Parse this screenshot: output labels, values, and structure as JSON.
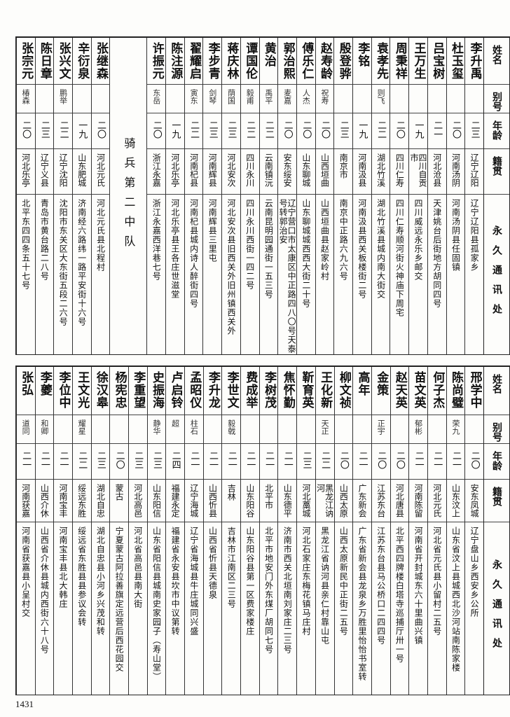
{
  "headers": {
    "name": "姓名",
    "alias": "别号",
    "age": "年龄",
    "origin": "籍贯",
    "address": "永久通讯处"
  },
  "top": {
    "rows": [
      {
        "name": "李升禹",
        "alias": "",
        "age": "二三",
        "origin": "辽宁辽阳",
        "address": "辽宁辽阳县孤家乡"
      },
      {
        "name": "杜玉玺",
        "alias": "",
        "age": "二〇",
        "origin": "河南汤阴",
        "address": "河南汤阴县任固镇"
      },
      {
        "name": "吕宝树",
        "alias": "",
        "age": "二一",
        "origin": "河北沧县",
        "address": "天津姚台后街地方胡同四号"
      },
      {
        "name": "王万生",
        "alias": "",
        "age": "一九",
        "origin": "四川自贡市",
        "address": "四川威远永乐乡邮交"
      },
      {
        "name": "周秉祥",
        "alias": "",
        "age": "二〇",
        "origin": "四川仁寿",
        "address": "四川仁寿顺河街火神庙下周宅"
      },
      {
        "name": "袁孝先",
        "alias": "则飞",
        "age": "二二",
        "origin": "湖北竹溪",
        "address": "湖北竹溪县城内南大街交"
      },
      {
        "name": "李铭",
        "alias": "",
        "age": "一九",
        "origin": "河南汲县",
        "address": "河南汲县西关板楼街二号"
      },
      {
        "name": "殷登骅",
        "alias": "",
        "age": "二三",
        "origin": "南京市",
        "address": "南京中正路六九六号"
      },
      {
        "name": "赵寿龄",
        "alias": "祝寿",
        "age": "二〇",
        "origin": "山西垣曲",
        "address": "山西垣曲县赵家岭村"
      },
      {
        "name": "傅乐仁",
        "alias": "人杰",
        "age": "二〇",
        "origin": "山东聊城",
        "address": "山东聊城城西西大街二十号"
      },
      {
        "name": "郭治熙",
        "alias": "麦嘉",
        "age": "二〇",
        "origin": "安东绥安",
        "address": "辽宁营口市太康区中正路四八〇号天泰号转郭治安"
      },
      {
        "name": "黄治",
        "alias": "禹平",
        "age": "二二",
        "origin": "云南镇沅",
        "address": "云南昆明园通街一五三号"
      },
      {
        "name": "谭国伦",
        "alias": "毅甫",
        "age": "二二",
        "origin": "四川永川",
        "address": "四川永川西街一四二号"
      },
      {
        "name": "蒋庆林",
        "alias": "荫国",
        "age": "二三",
        "origin": "河北安次",
        "address": "河北安次县旧西关外旧州镇西关外"
      },
      {
        "name": "李步青",
        "alias": "剑琴",
        "age": "二三",
        "origin": "河南辉县",
        "address": "河南辉县三里屯"
      },
      {
        "name": "翟耀启",
        "alias": "寅东",
        "age": "二二",
        "origin": "河南杞县",
        "address": "河南杞县城内诗人醉街四号"
      },
      {
        "name": "陈注源",
        "alias": "",
        "age": "一九",
        "origin": "河北乐亭",
        "address": "河北乐亭县王各庄世滋堂"
      },
      {
        "name": "许振元",
        "alias": "东岳",
        "age": "二〇",
        "origin": "浙江永嘉",
        "address": "浙江永嘉西洋巷七号"
      }
    ],
    "squad": "骑兵第二中队",
    "rows2": [
      {
        "name": "张继森",
        "alias": "",
        "age": "二〇",
        "origin": "河北元氏",
        "address": "河北元氏县北程村"
      },
      {
        "name": "辛衍泉",
        "alias": "",
        "age": "一九",
        "origin": "山东肥城",
        "address": "济南经六路纬一路平安街十六号"
      },
      {
        "name": "张兴文",
        "alias": "鹏举",
        "age": "二二",
        "origin": "辽宁沈阳",
        "address": "沈阳市东关区大东街五段二六号"
      },
      {
        "name": "陈日章",
        "alias": "",
        "age": "二三",
        "origin": "辽宁义县",
        "address": "青岛市黄台路二八号"
      },
      {
        "name": "张宗元",
        "alias": "椿森",
        "age": "二〇",
        "origin": "河北乐亭",
        "address": "北平东四四条五十七号"
      }
    ]
  },
  "bottom": {
    "rows": [
      {
        "name": "邢学中",
        "alias": "",
        "age": "二〇",
        "origin": "安东凤城",
        "address": "辽宁盘山乡西安乡公所"
      },
      {
        "name": "陈尚璧",
        "alias": "荣九",
        "age": "二一",
        "origin": "山东汶上",
        "address": "山东省汶上县城西北沙河站南陈家楼"
      },
      {
        "name": "何子杰",
        "alias": "",
        "age": "二一",
        "origin": "河北元氏",
        "address": "河北省元氏县小留村二五号"
      },
      {
        "name": "苗文英",
        "alias": "郁彬",
        "age": "二一",
        "origin": "河南陈留",
        "address": "河南省开封城东六十里曲兴镇"
      },
      {
        "name": "赵天英",
        "alias": "",
        "age": "二〇",
        "origin": "河北唐县",
        "address": "北平西四牌楼白塔寺巡捕厅卅一号"
      },
      {
        "name": "金策",
        "alias": "正宇",
        "age": "二〇",
        "origin": "江苏东台",
        "address": "江苏东台县马公桥口二四四号"
      },
      {
        "name": "高年",
        "alias": "",
        "age": "二一",
        "origin": "广东新会",
        "address": "广东省新会县龙泉乡万胜里怡怡书室转"
      },
      {
        "name": "柳文祯",
        "alias": "",
        "age": "二〇",
        "origin": "山西太原",
        "address": "山西太原新民中正街二五号"
      },
      {
        "name": "王化新",
        "alias": "天正",
        "age": "二二",
        "origin": "黑龙江讷河",
        "address": "黑龙江省讷河县亲仁村靠山屯"
      },
      {
        "name": "靳育英",
        "alias": "",
        "age": "二三",
        "origin": "河北藁城",
        "address": "河北石家庄东梅花镇马庄村"
      },
      {
        "name": "焦怀勤",
        "alias": "",
        "age": "二一",
        "origin": "山东德平",
        "address": "济南市西关北垣南刘家庄二三号"
      },
      {
        "name": "李树茂",
        "alias": "",
        "age": "二一",
        "origin": "北平市",
        "address": "北平市地安门外东煤厂胡同七号"
      },
      {
        "name": "费成举",
        "alias": "",
        "age": "二一",
        "origin": "山东阳谷",
        "address": "山东阳谷县第一区费家楼庄"
      },
      {
        "name": "李世文",
        "alias": "毅戟",
        "age": "二一",
        "origin": "吉林",
        "address": "吉林市江南区二三号"
      },
      {
        "name": "李升龙",
        "alias": "",
        "age": "二一",
        "origin": "山西忻县",
        "address": "山西省忻县天德泉"
      },
      {
        "name": "孟昭仪",
        "alias": "柱石",
        "age": "二一",
        "origin": "辽宁海城",
        "address": "辽宁省海城县牛庄城同兴盛"
      },
      {
        "name": "卢启铃",
        "alias": "超",
        "age": "二四",
        "origin": "福建永定",
        "address": "福建省永安县坎市中议第转"
      },
      {
        "name": "史振海",
        "alias": "静华",
        "age": "二三",
        "origin": "山东阳信",
        "address": "山东省阳信县城南史家园子（寿山堂）"
      },
      {
        "name": "李重望",
        "alias": "",
        "age": "二三",
        "origin": "河北高邑",
        "address": "河北省高邑县南大街"
      },
      {
        "name": "杨宪忠",
        "alias": "",
        "age": "二〇",
        "origin": "蒙古",
        "address": "宁夏蒙古阿拉善旗定远营后西花园交"
      },
      {
        "name": "徐汉皋",
        "alias": "",
        "age": "二三",
        "origin": "湖北自忠",
        "address": "湖北自忠县小河乡兴茂和转"
      },
      {
        "name": "王文光",
        "alias": "耀星",
        "age": "二二",
        "origin": "绥远东胜",
        "address": "绥远省东胜县县参议会转"
      },
      {
        "name": "李位中",
        "alias": "",
        "age": "二一",
        "origin": "河南宝丰",
        "address": "河南宝丰县北大韩庄"
      },
      {
        "name": "李夔",
        "alias": "和卿",
        "age": "二一",
        "origin": "山西介休",
        "address": "山西省介休县城内西街六十八号"
      },
      {
        "name": "张弘",
        "alias": "道同",
        "age": "二一",
        "origin": "河南获嘉",
        "address": "河南省获嘉县小呈村交"
      }
    ]
  },
  "page_number": "1431"
}
